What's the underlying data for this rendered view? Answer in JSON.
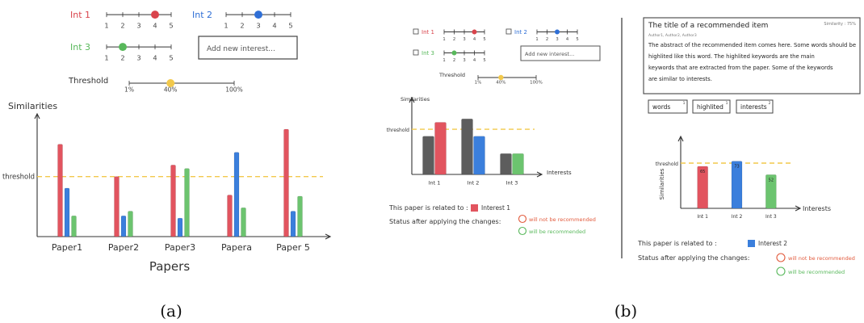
{
  "captions": {
    "a": "(a)",
    "b": "(b)"
  },
  "colors": {
    "red": "#e2545f",
    "blue": "#3b7fdc",
    "green": "#6cc46f",
    "gray": "#5d5d5d",
    "yellow": "#f2c94c"
  },
  "panel_a": {
    "sliders": [
      {
        "label": "Int 1",
        "value": 4,
        "color": "#d9444c"
      },
      {
        "label": "Int 2",
        "value": 3,
        "color": "#2f6fd6"
      },
      {
        "label": "Int 3",
        "value": 2,
        "color": "#58b85b"
      }
    ],
    "slider_ticks": [
      "1",
      "2",
      "3",
      "4",
      "5"
    ],
    "add_interest_placeholder": "Add new interest...",
    "threshold_label": "Threshold",
    "threshold_ticks": [
      "1%",
      "40%",
      "100%"
    ],
    "threshold_value": 40,
    "chart": {
      "ylabel": "Similarities",
      "xlabel": "Papers",
      "threshold_axis_label": "threshold",
      "categories": [
        "Paper1",
        "Paper2",
        "Paper3",
        "Papera",
        "Paper 5"
      ],
      "series": [
        {
          "color": "#e2545f",
          "values": [
            0.8,
            0.52,
            0.62,
            0.36,
            0.93
          ]
        },
        {
          "color": "#3b7fdc",
          "values": [
            0.42,
            0.18,
            0.16,
            0.73,
            0.22
          ]
        },
        {
          "color": "#6cc46f",
          "values": [
            0.18,
            0.22,
            0.59,
            0.25,
            0.35
          ]
        }
      ],
      "threshold": 0.52
    }
  },
  "panel_b1": {
    "sliders": [
      {
        "label": "Int 1",
        "value": 4,
        "color": "#d9444c"
      },
      {
        "label": "Int 2",
        "value": 3,
        "color": "#2f6fd6"
      },
      {
        "label": "Int 3",
        "value": 2,
        "color": "#58b85b"
      }
    ],
    "slider_ticks": [
      "1",
      "2",
      "3",
      "4",
      "5"
    ],
    "add_interest_placeholder": "Add new interest...",
    "threshold_label": "Threshold",
    "threshold_ticks": [
      "1%",
      "40%",
      "100%"
    ],
    "threshold_value": 40,
    "chart": {
      "ylabel": "Similarities",
      "xlabel": "Interests",
      "threshold_axis_label": "threshold",
      "categories": [
        "Int 1",
        "Int 2",
        "Int 3"
      ],
      "series": [
        {
          "color": "#5d5d5d",
          "values": [
            0.55,
            0.8,
            0.3
          ]
        },
        {
          "color": "#e2545f",
          "values": [
            0.75,
            0,
            0
          ]
        },
        {
          "color": "#3b7fdc",
          "values": [
            0,
            0.55,
            0
          ]
        },
        {
          "color": "#6cc46f",
          "values": [
            0,
            0,
            0.3
          ]
        }
      ],
      "threshold": 0.65
    },
    "related_label": "This paper is related to :",
    "related_interest": "Interest 1",
    "related_color": "#e2545f",
    "status_label": "Status after applying the changes:",
    "status_options": [
      {
        "text": "will not be recommended",
        "color": "#e25a3c"
      },
      {
        "text": "will be recommended",
        "color": "#58b85b"
      }
    ]
  },
  "panel_b2": {
    "item_title": "The title of a recommended item",
    "similarity": "Similarity : 75%",
    "authors": "Author1, Author2, Author3",
    "abstract_lines": [
      "The abstract of the recommended item comes here. Some words should be",
      "highlited like this word. The highlited keywords are the main",
      "keywords that are extracted from the paper. Some of the keywords",
      "are similar to interests."
    ],
    "keyword_chips": [
      "words",
      "highlited",
      "interests"
    ],
    "chip_counts": [
      "1",
      "1",
      "2"
    ],
    "chart": {
      "ylabel": "Similarities",
      "xlabel": "Interests",
      "threshold_axis_label": "threshold",
      "categories": [
        "Int 1",
        "Int 2",
        "Int 3"
      ],
      "series": [
        {
          "color": "#e2545f",
          "values": [
            0.65,
            0,
            0
          ]
        },
        {
          "color": "#3b7fdc",
          "values": [
            0,
            0.73,
            0
          ]
        },
        {
          "color": "#6cc46f",
          "values": [
            0,
            0,
            0.52
          ]
        }
      ],
      "bar_labels": [
        "65",
        "73",
        "52"
      ],
      "threshold": 0.7
    },
    "related_label": "This paper is related to :",
    "related_interest": "Interest 2",
    "related_color": "#3b7fdc",
    "status_label": "Status after applying the changes:",
    "status_options": [
      {
        "text": "will not be recommended",
        "color": "#e25a3c"
      },
      {
        "text": "will be recommended",
        "color": "#58b85b"
      }
    ]
  }
}
